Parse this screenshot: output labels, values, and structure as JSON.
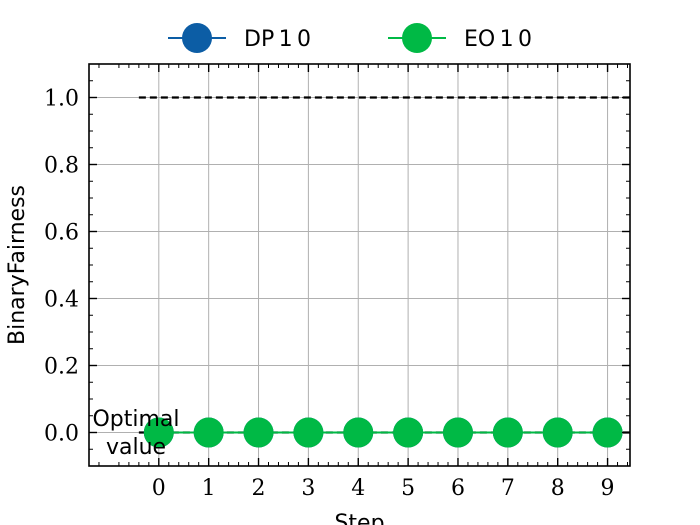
{
  "chart_data": {
    "type": "line",
    "title": "",
    "xlabel": "Step",
    "ylabel": "BinaryFairness",
    "x": [
      0,
      1,
      2,
      3,
      4,
      5,
      6,
      7,
      8,
      9
    ],
    "xlim": [
      -1.4,
      9.45
    ],
    "ylim": [
      -0.1,
      1.1
    ],
    "x_ticks": [
      0,
      1,
      2,
      3,
      4,
      5,
      6,
      7,
      8,
      9
    ],
    "x_tick_labels": [
      "0",
      "1",
      "2",
      "3",
      "4",
      "5",
      "6",
      "7",
      "8",
      "9"
    ],
    "y_ticks": [
      0.0,
      0.2,
      0.4,
      0.6,
      0.8,
      1.0
    ],
    "y_tick_labels": [
      "0.0",
      "0.2",
      "0.4",
      "0.6",
      "0.8",
      "1.0"
    ],
    "grid": true,
    "legend_position": "top-center, outside",
    "series": [
      {
        "name": "DP_1_0",
        "legend_label": "DP 1 0",
        "color": "#0C5DA5",
        "values": [
          0,
          0,
          0,
          0,
          0,
          0,
          0,
          0,
          0,
          0
        ]
      },
      {
        "name": "EO_1_0",
        "legend_label": "EO 1 0",
        "color": "#00B945",
        "values": [
          0,
          0,
          0,
          0,
          0,
          0,
          0,
          0,
          0,
          0
        ]
      }
    ],
    "reference_lines": [
      {
        "y": 1.0,
        "x_from": -0.4,
        "style": "dashed",
        "color": "#000000"
      },
      {
        "y": 0.0,
        "x_from": -0.4,
        "style": "dashed",
        "color": "#000000"
      }
    ],
    "annotations": [
      {
        "text": "Optimal\nvalue",
        "near_y": 0.0
      }
    ]
  }
}
